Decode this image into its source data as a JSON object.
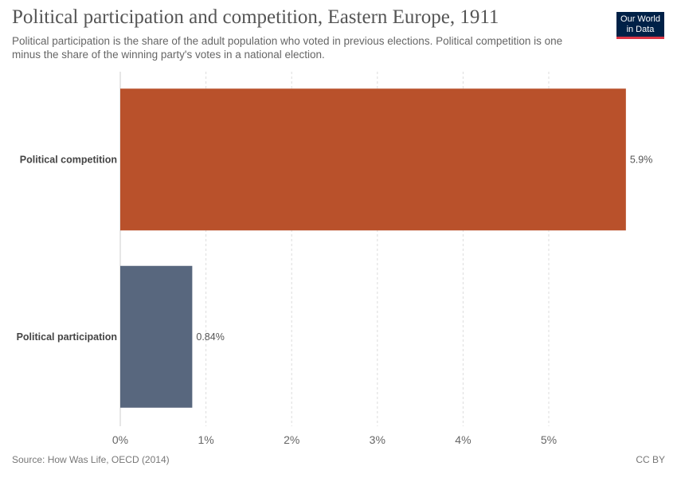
{
  "header": {
    "title": "Political participation and competition, Eastern Europe, 1911",
    "subtitle": "Political participation is the share of the adult population who voted in previous elections. Political competition is one minus the share of the winning party's votes in a national election."
  },
  "logo": {
    "line1": "Our World",
    "line2": "in Data",
    "bg": "#002147",
    "accent": "#dc3545"
  },
  "footer": {
    "source": "Source: How Was Life, OECD (2014)",
    "license": "CC BY"
  },
  "chart_data": {
    "type": "bar",
    "orientation": "horizontal",
    "categories": [
      "Political competition",
      "Political participation"
    ],
    "values": [
      5.9,
      0.84
    ],
    "value_labels": [
      "5.9%",
      "0.84%"
    ],
    "colors": [
      "#b9512b",
      "#58677e"
    ],
    "xlim": [
      0,
      6
    ],
    "xticks": [
      0,
      1,
      2,
      3,
      4,
      5
    ],
    "xtick_labels": [
      "0%",
      "1%",
      "2%",
      "3%",
      "4%",
      "5%"
    ],
    "grid": true,
    "title": "Political participation and competition, Eastern Europe, 1911",
    "xlabel": "",
    "ylabel": ""
  }
}
